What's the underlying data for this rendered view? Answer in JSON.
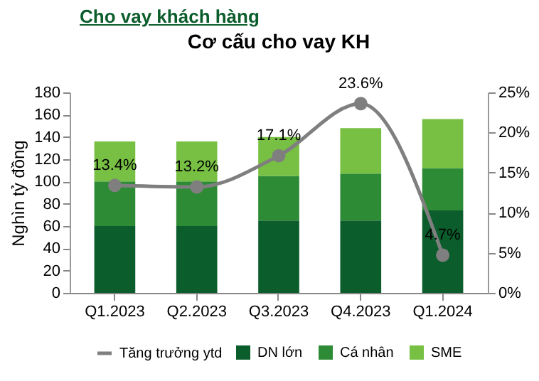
{
  "chart_data": {
    "type": "bar",
    "title": "Cho vay khách hàng",
    "subtitle": "Cơ cấu cho vay KH",
    "ylabel": "Nghìn tỷ đồng",
    "categories": [
      "Q1.2023",
      "Q2.2023",
      "Q3.2023",
      "Q4.2023",
      "Q1.2024"
    ],
    "stacked": true,
    "legend": "bottom",
    "grid": false,
    "ylim": [
      0,
      180
    ],
    "yticks": [
      0,
      20,
      40,
      60,
      80,
      100,
      120,
      140,
      160,
      180
    ],
    "y2lim": [
      0,
      25
    ],
    "y2ticks": [
      {
        "value": 0,
        "label": "0%"
      },
      {
        "value": 5,
        "label": "5%"
      },
      {
        "value": 10,
        "label": "10%"
      },
      {
        "value": 15,
        "label": "15%"
      },
      {
        "value": 20,
        "label": "20%"
      },
      {
        "value": 25,
        "label": "25%"
      }
    ],
    "series": [
      {
        "name": "DN lớn",
        "color": "#0b5d2c",
        "values": [
          60,
          60,
          65,
          65,
          74
        ]
      },
      {
        "name": "Cá nhân",
        "color": "#2e8b35",
        "values": [
          40,
          40,
          40,
          42,
          38
        ]
      },
      {
        "name": "SME",
        "color": "#77c043",
        "values": [
          36,
          36,
          35,
          41,
          44
        ]
      },
      {
        "name": "Tăng trưởng ytd",
        "type": "line",
        "axis": "y2",
        "color": "#7f7f7f",
        "marker": "circle",
        "values": [
          13.4,
          13.2,
          17.1,
          23.6,
          4.7
        ],
        "value_labels": [
          "13.4%",
          "13.2%",
          "17.1%",
          "23.6%",
          "4.7%"
        ]
      }
    ]
  }
}
